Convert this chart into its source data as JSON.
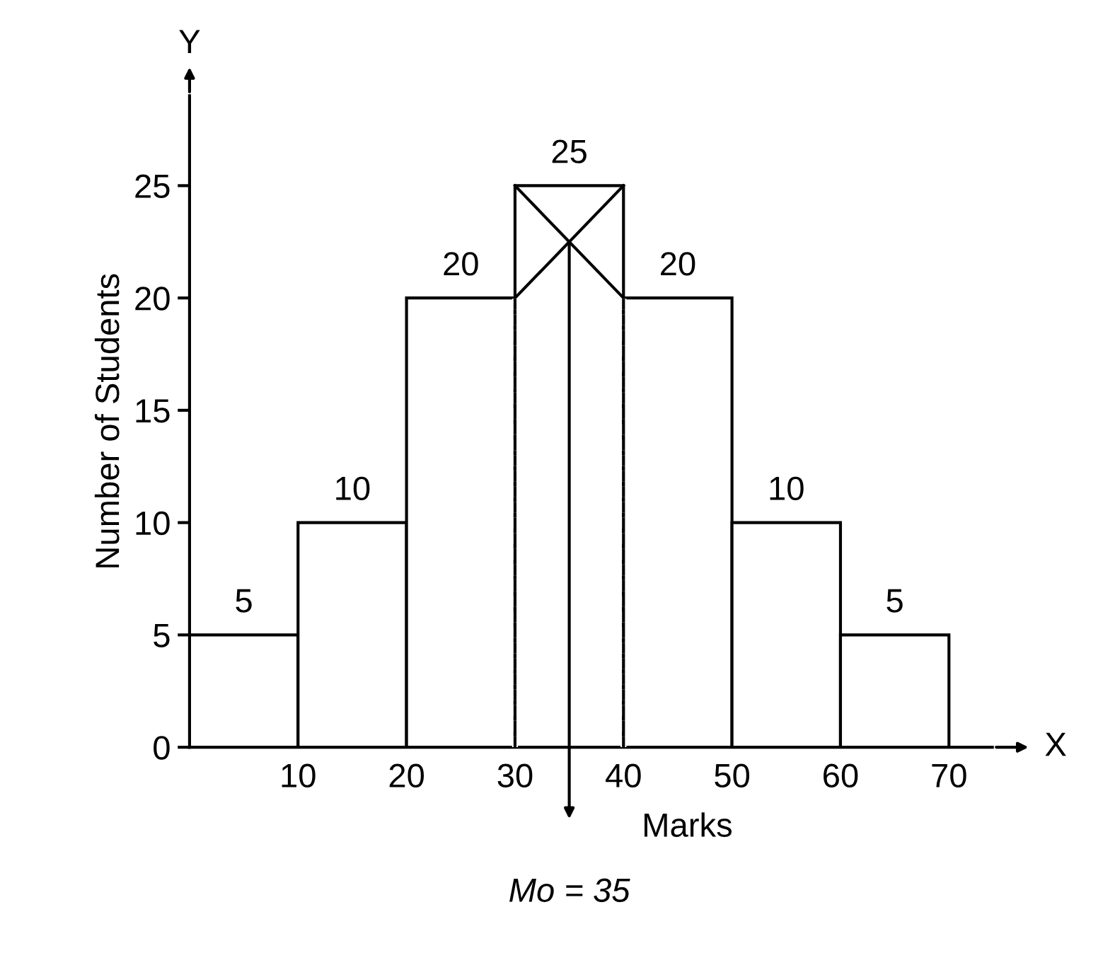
{
  "chart_data": {
    "type": "histogram",
    "xlabel": "Marks",
    "ylabel": "Number of Students",
    "bins": [
      0,
      10,
      20,
      30,
      40,
      50,
      60,
      70
    ],
    "values": [
      5,
      10,
      20,
      25,
      20,
      10,
      5
    ],
    "color": "#ffffff",
    "value_labels": [
      "5",
      "10",
      "20",
      "25",
      "20",
      "10",
      "5"
    ],
    "series": [
      {
        "type": "line",
        "color": "#000000",
        "line_style": "solid",
        "x": [
          30,
          40
        ],
        "values": [
          20,
          25
        ]
      },
      {
        "type": "line",
        "color": "#000000",
        "line_style": "solid",
        "x": [
          30,
          40
        ],
        "values": [
          25,
          20
        ]
      },
      {
        "type": "line",
        "color": "#000000",
        "line_style": "dashed",
        "x": [
          30,
          30
        ],
        "values": [
          0,
          20
        ]
      },
      {
        "type": "line",
        "color": "#000000",
        "line_style": "dashed",
        "x": [
          40,
          40
        ],
        "values": [
          0,
          20
        ]
      },
      {
        "type": "line",
        "color": "#000000",
        "line_style": "solid",
        "x": [
          35,
          35
        ],
        "values": [
          22.5,
          0
        ]
      }
    ],
    "annotations": [
      "Mo = 35",
      "X",
      "Y"
    ],
    "xlim": [
      0,
      74
    ],
    "ylim": [
      0,
      29
    ],
    "xticks": [
      10,
      20,
      30,
      40,
      50,
      60,
      70
    ],
    "yticks": [
      0,
      5,
      10,
      15,
      20,
      25
    ],
    "grid": false,
    "legend": false
  }
}
